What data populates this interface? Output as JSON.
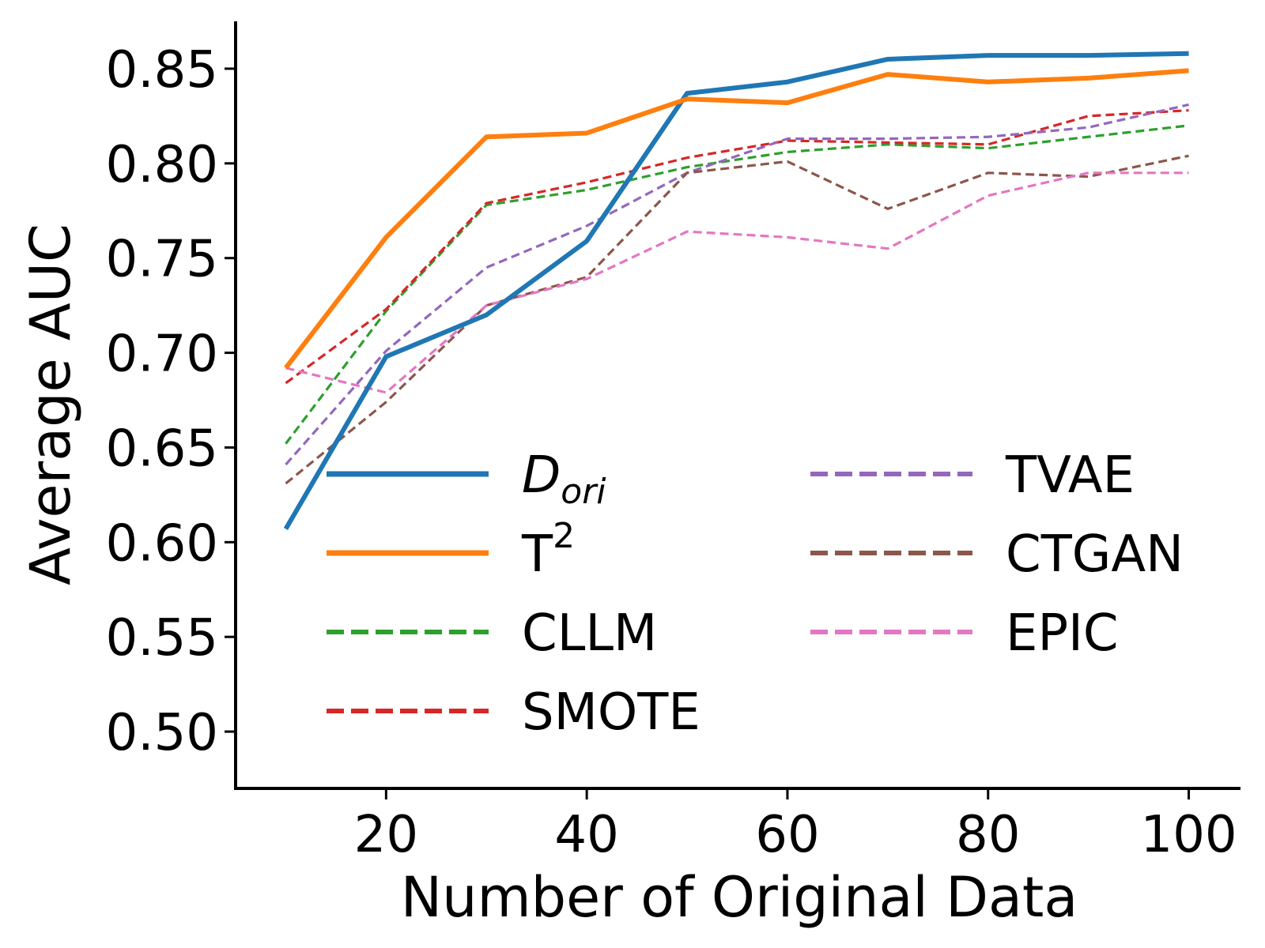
{
  "chart_data": {
    "type": "line",
    "title": "",
    "xlabel": "Number of Original Data",
    "ylabel": "Average AUC",
    "xlim": [
      5,
      105
    ],
    "ylim": [
      0.47,
      0.875
    ],
    "xticks": [
      20,
      40,
      60,
      80,
      100
    ],
    "xtick_labels": [
      "20",
      "40",
      "60",
      "80",
      "100"
    ],
    "yticks": [
      0.5,
      0.55,
      0.6,
      0.65,
      0.7,
      0.75,
      0.8,
      0.85
    ],
    "ytick_labels": [
      "0.50",
      "0.55",
      "0.60",
      "0.65",
      "0.70",
      "0.75",
      "0.80",
      "0.85"
    ],
    "grid": false,
    "legend_position": "center-bottom, two columns",
    "x": [
      10,
      20,
      30,
      40,
      50,
      60,
      70,
      80,
      90,
      100
    ],
    "series": [
      {
        "name": "D",
        "subscript": "ori",
        "italic": true,
        "color": "#1f77b4",
        "style": "solid",
        "width": "thick",
        "values": [
          0.607,
          0.698,
          0.72,
          0.759,
          0.837,
          0.843,
          0.855,
          0.857,
          0.857,
          0.858
        ]
      },
      {
        "name": "T",
        "superscript": "2",
        "color": "#ff7f0e",
        "style": "solid",
        "width": "thick",
        "values": [
          0.692,
          0.761,
          0.814,
          0.816,
          0.834,
          0.832,
          0.847,
          0.843,
          0.845,
          0.849
        ]
      },
      {
        "name": "CLLM",
        "color": "#2ca02c",
        "style": "dashed",
        "width": "thin",
        "values": [
          0.652,
          0.722,
          0.778,
          0.786,
          0.798,
          0.806,
          0.81,
          0.808,
          0.814,
          0.82
        ]
      },
      {
        "name": "SMOTE",
        "color": "#d62728",
        "style": "dashed",
        "width": "thin",
        "values": [
          0.684,
          0.723,
          0.779,
          0.79,
          0.803,
          0.812,
          0.811,
          0.81,
          0.825,
          0.828
        ]
      },
      {
        "name": "TVAE",
        "color": "#9467bd",
        "style": "dashed",
        "width": "thin",
        "values": [
          0.641,
          0.701,
          0.745,
          0.767,
          0.795,
          0.813,
          0.813,
          0.814,
          0.819,
          0.831
        ]
      },
      {
        "name": "CTGAN",
        "color": "#8c564b",
        "style": "dashed",
        "width": "thin",
        "values": [
          0.631,
          0.674,
          0.725,
          0.74,
          0.795,
          0.801,
          0.776,
          0.795,
          0.793,
          0.804
        ]
      },
      {
        "name": "EPIC",
        "color": "#e377c2",
        "style": "dashed",
        "width": "thin",
        "values": [
          0.692,
          0.679,
          0.725,
          0.739,
          0.764,
          0.761,
          0.755,
          0.783,
          0.795,
          0.795
        ]
      }
    ]
  }
}
